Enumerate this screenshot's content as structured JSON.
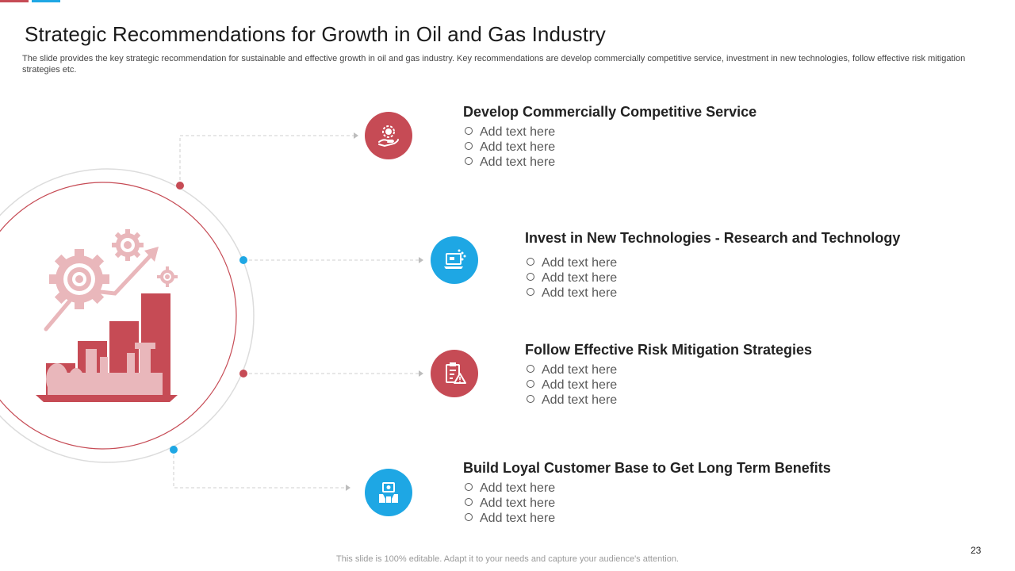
{
  "slide": {
    "title": "Strategic Recommendations for Growth in Oil and Gas Industry",
    "subtitle": "The slide provides the key strategic recommendation for sustainable and effective growth in oil and gas industry. Key recommendations are develop commercially competitive service, investment in new technologies, follow effective risk mitigation strategies etc.",
    "footer": "This slide is 100% editable. Adapt it to your needs and capture your audience's attention.",
    "page_number": "23"
  },
  "colors": {
    "accent_red": "#c64b55",
    "accent_blue": "#1ea7e4",
    "illustration_pink": "#e9b7bb"
  },
  "recommendations": [
    {
      "heading": "Develop Commercially Competitive Service",
      "icon": "hand-money-icon",
      "points": [
        "Add text here",
        "Add text here",
        "Add text here"
      ]
    },
    {
      "heading": "Invest in New Technologies - Research and Technology",
      "icon": "laptop-network-icon",
      "points": [
        "Add text here",
        "Add text here",
        "Add text here"
      ]
    },
    {
      "heading": "Follow Effective Risk Mitigation Strategies",
      "icon": "risk-checklist-icon",
      "points": [
        "Add text here",
        "Add text here",
        "Add text here"
      ]
    },
    {
      "heading": "Build Loyal Customer Base to Get Long Term Benefits",
      "icon": "customer-money-icon",
      "points": [
        "Add text here",
        "Add text here",
        "Add text here"
      ]
    }
  ]
}
